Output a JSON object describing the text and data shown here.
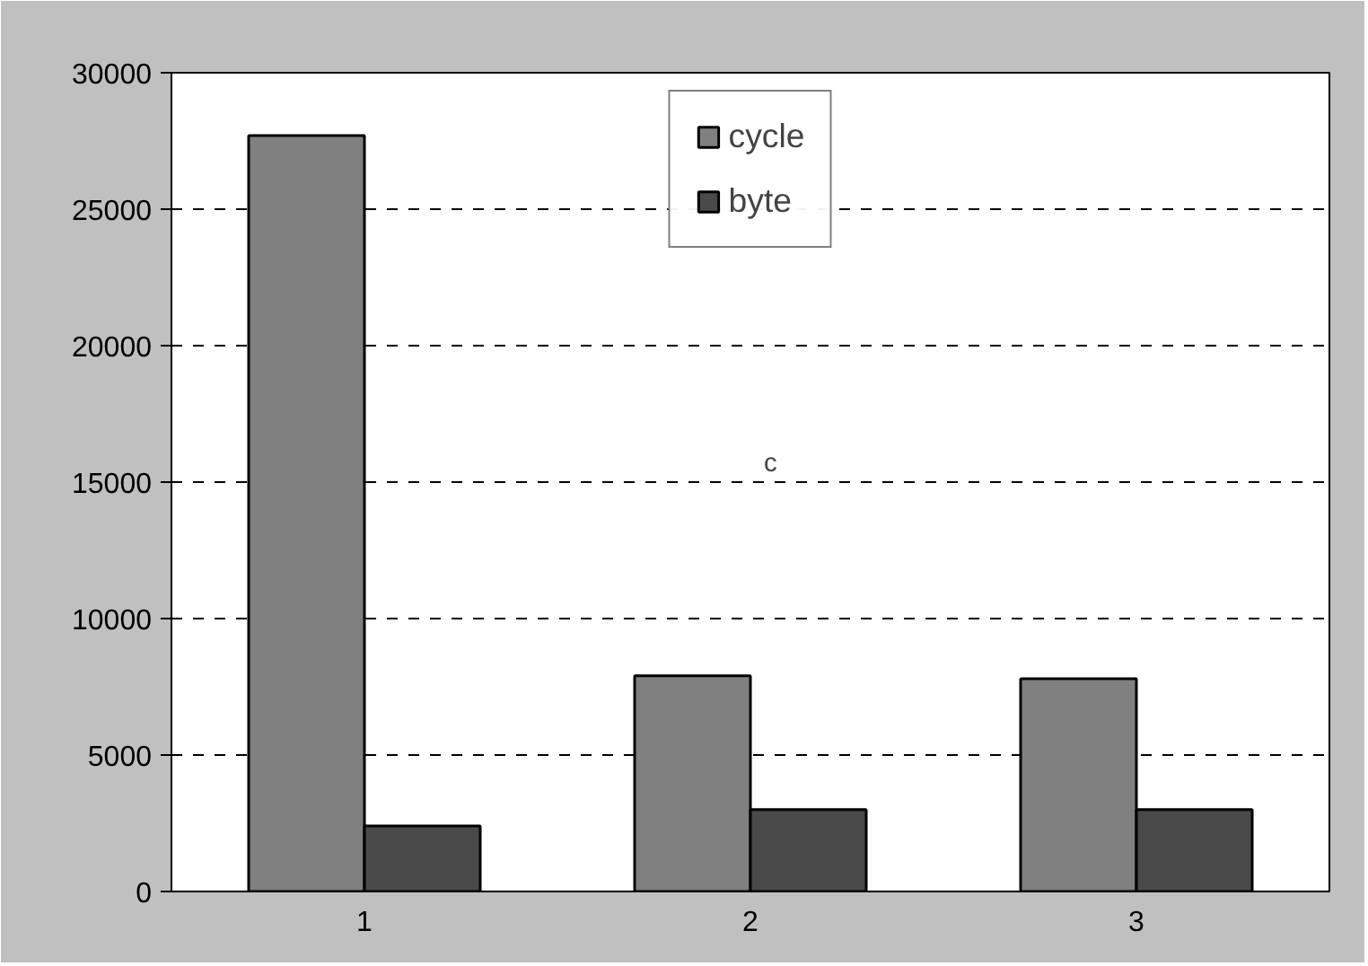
{
  "chart_data": {
    "type": "bar",
    "categories": [
      "1",
      "2",
      "3"
    ],
    "series": [
      {
        "name": "cycle",
        "color": "#808080",
        "values": [
          27700,
          7900,
          7800
        ]
      },
      {
        "name": "byte",
        "color": "#4a4a4a",
        "values": [
          2400,
          3000,
          3000
        ]
      }
    ],
    "ylim": [
      0,
      30000
    ],
    "yticks": [
      0,
      5000,
      10000,
      15000,
      20000,
      25000,
      30000
    ],
    "grid": "y",
    "legend": "top",
    "annotations": [
      "c"
    ]
  }
}
